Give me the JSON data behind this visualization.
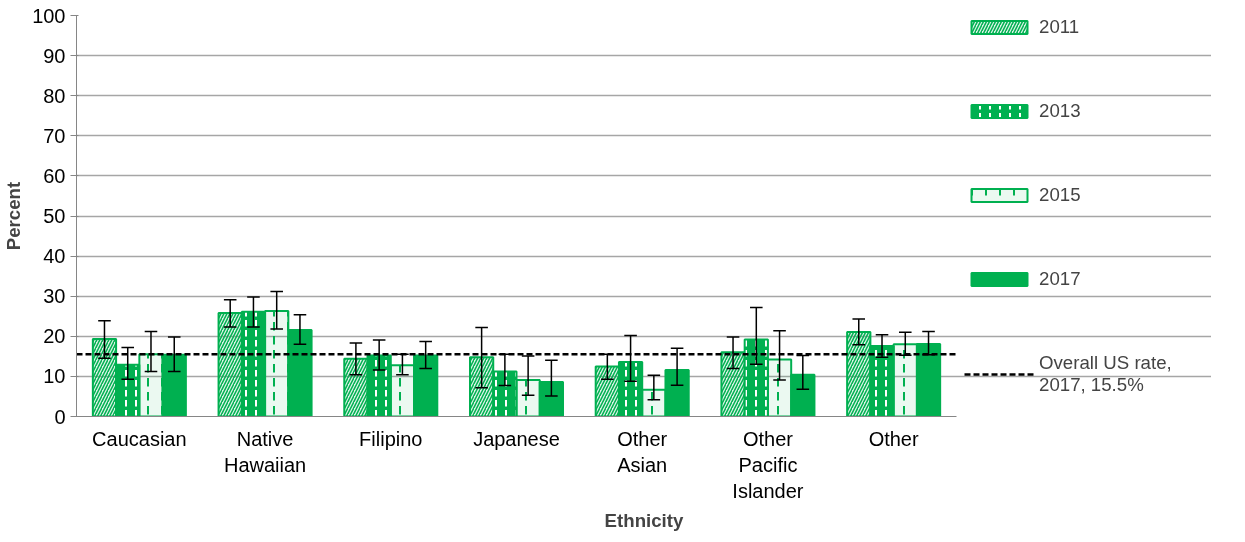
{
  "chart_data": {
    "type": "bar",
    "xlabel": "Ethnicity",
    "ylabel": "Percent",
    "categories": [
      "Caucasian",
      "Native Hawaiian",
      "Filipino",
      "Japanese",
      "Other Asian",
      "Other Pacific Islander",
      "Other"
    ],
    "ylim": [
      0,
      100
    ],
    "yticks": [
      0,
      10,
      20,
      30,
      40,
      50,
      60,
      70,
      80,
      90,
      100
    ],
    "grid": "y",
    "legend": "right",
    "series": [
      {
        "name": "2011",
        "color": "#00b050",
        "values": [
          19.3,
          25.8,
          14.4,
          14.8,
          12.5,
          16.0,
          21.1
        ],
        "errors": [
          [
            14.5,
            23.9
          ],
          [
            22.3,
            29.1
          ],
          [
            10.4,
            18.3
          ],
          [
            7.2,
            22.2
          ],
          [
            9.3,
            15.5
          ],
          [
            12.0,
            19.8
          ],
          [
            17.9,
            24.3
          ]
        ]
      },
      {
        "name": "2013",
        "color": "#00b050",
        "values": [
          12.9,
          26.1,
          15.2,
          11.2,
          13.6,
          19.2,
          17.6
        ],
        "errors": [
          [
            9.3,
            17.2
          ],
          [
            22.3,
            29.8
          ],
          [
            11.6,
            19.1
          ],
          [
            7.7,
            15.5
          ],
          [
            8.8,
            20.2
          ],
          [
            13.0,
            27.2
          ],
          [
            14.8,
            20.4
          ]
        ]
      },
      {
        "name": "2015",
        "color": "#00b050",
        "values": [
          15.5,
          26.3,
          12.8,
          9.1,
          6.7,
          14.2,
          18.0
        ],
        "errors": [
          [
            11.2,
            21.2
          ],
          [
            21.8,
            31.2
          ],
          [
            10.4,
            15.5
          ],
          [
            5.3,
            15.1
          ],
          [
            4.2,
            10.3
          ],
          [
            9.1,
            21.4
          ],
          [
            15.3,
            21.0
          ]
        ]
      },
      {
        "name": "2017",
        "color": "#00b050",
        "values": [
          15.4,
          21.6,
          15.2,
          8.6,
          11.6,
          10.4,
          18.1
        ],
        "errors": [
          [
            11.2,
            19.8
          ],
          [
            18.0,
            25.4
          ],
          [
            12.0,
            18.7
          ],
          [
            5.1,
            14.0
          ],
          [
            7.8,
            17.0
          ],
          [
            6.8,
            15.2
          ],
          [
            15.4,
            21.2
          ]
        ]
      }
    ],
    "ref_lines": [
      {
        "axis": "y",
        "value": 15.5,
        "label": "Overall US rate, 2017, 15.5%",
        "color": "#000000",
        "line_style": "dashed"
      }
    ]
  }
}
